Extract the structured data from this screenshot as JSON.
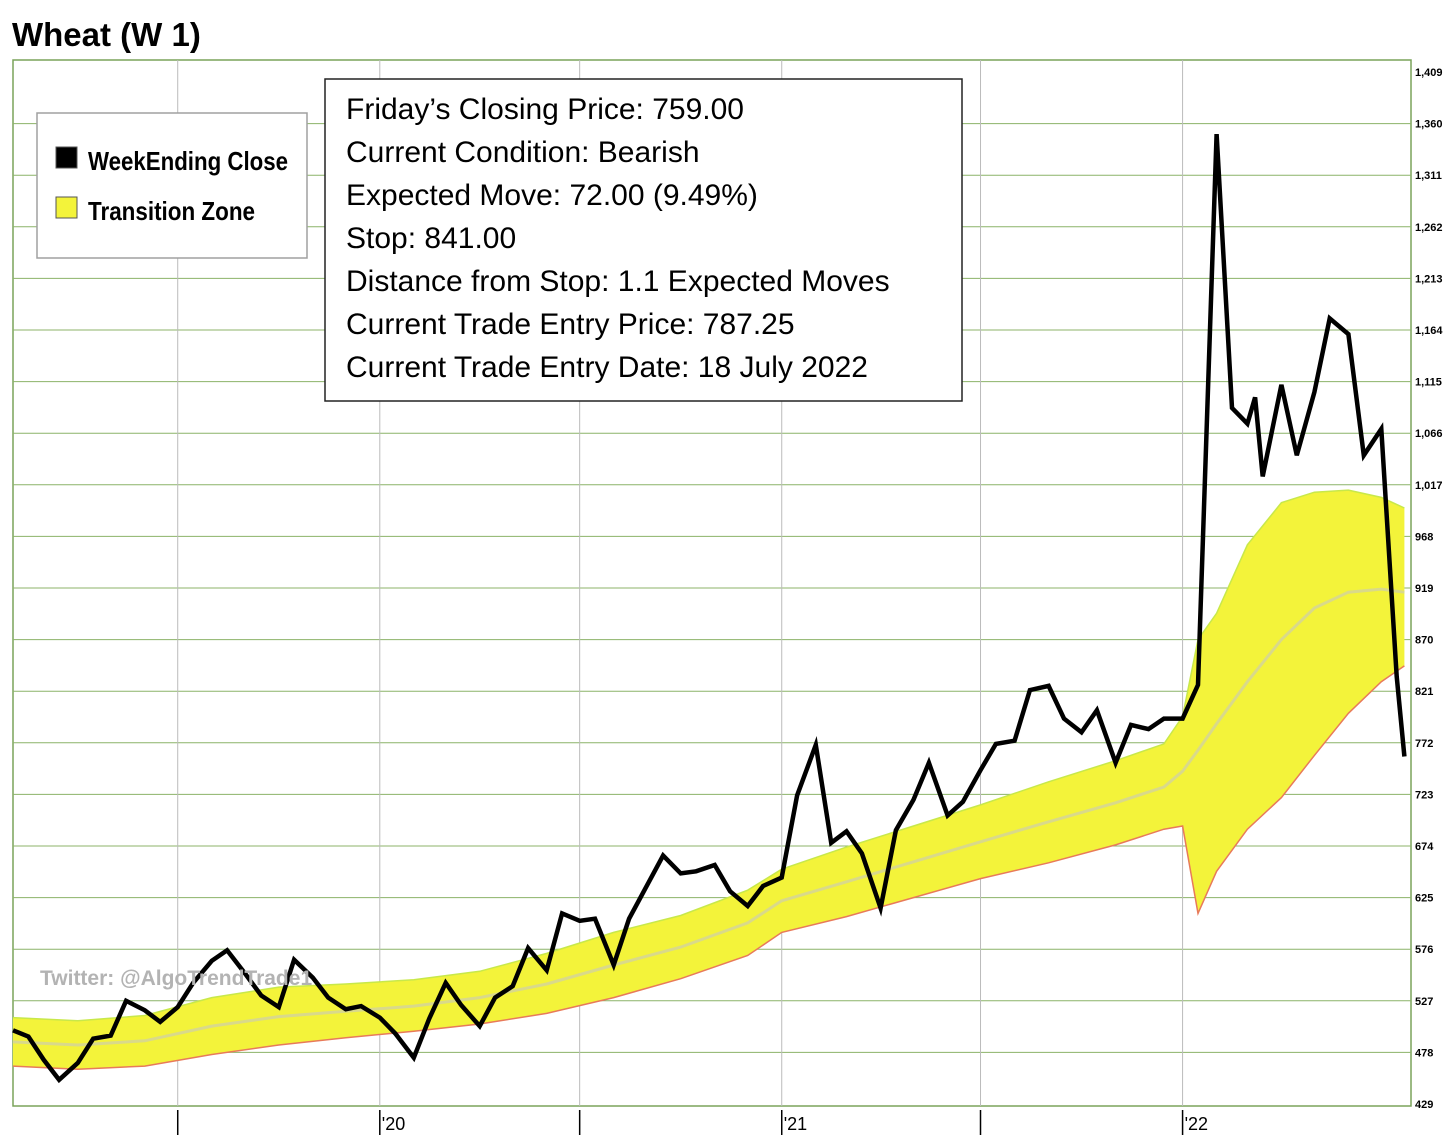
{
  "chart_data": {
    "type": "line",
    "title": "Wheat (W 1)",
    "ylim": [
      429,
      1409
    ],
    "y_ticks": [
      "1,409",
      "1,360",
      "1,311",
      "1,262",
      "1,213",
      "1,164",
      "1,115",
      "1,066",
      "1,017",
      "968",
      "919",
      "870",
      "821",
      "772",
      "723",
      "674",
      "625",
      "576",
      "527",
      "478",
      "429"
    ],
    "x_tick_labels": [
      {
        "label": "",
        "x": "2019-07"
      },
      {
        "label": "'20",
        "x": "2020-01"
      },
      {
        "label": "",
        "x": "2020-07"
      },
      {
        "label": "'21",
        "x": "2021-01"
      },
      {
        "label": "",
        "x": "2021-07"
      },
      {
        "label": "'22",
        "x": "2022-01"
      }
    ],
    "grid": true,
    "legend_position": "top-left",
    "colors": {
      "close_line": "#000000",
      "zone_fill": "#f3f33a",
      "zone_upper_edge": "#c8e84a",
      "zone_lower_edge": "#e87a5a",
      "zone_mid_line": "#d9d98a",
      "grid_horizontal": "#8cb368",
      "grid_vertical": "#bbbbbb",
      "plot_border": "#7aa35a"
    },
    "series": [
      {
        "name": "WeekEnding Close",
        "x": [
          "2019-02-01",
          "2019-02-15",
          "2019-03-01",
          "2019-03-15",
          "2019-04-01",
          "2019-04-15",
          "2019-05-01",
          "2019-05-15",
          "2019-06-01",
          "2019-06-15",
          "2019-07-01",
          "2019-07-15",
          "2019-08-01",
          "2019-08-15",
          "2019-09-01",
          "2019-09-15",
          "2019-10-01",
          "2019-10-15",
          "2019-11-01",
          "2019-11-15",
          "2019-12-01",
          "2019-12-15",
          "2020-01-01",
          "2020-01-15",
          "2020-02-01",
          "2020-02-15",
          "2020-03-01",
          "2020-03-15",
          "2020-04-01",
          "2020-04-15",
          "2020-05-01",
          "2020-05-15",
          "2020-06-01",
          "2020-06-15",
          "2020-07-01",
          "2020-07-15",
          "2020-08-01",
          "2020-08-15",
          "2020-09-01",
          "2020-09-15",
          "2020-10-01",
          "2020-10-15",
          "2020-11-01",
          "2020-11-15",
          "2020-12-01",
          "2020-12-15",
          "2021-01-01",
          "2021-01-15",
          "2021-02-01",
          "2021-02-15",
          "2021-03-01",
          "2021-03-15",
          "2021-04-01",
          "2021-04-15",
          "2021-05-01",
          "2021-05-15",
          "2021-06-01",
          "2021-06-15",
          "2021-07-01",
          "2021-07-15",
          "2021-08-01",
          "2021-08-15",
          "2021-09-01",
          "2021-09-15",
          "2021-10-01",
          "2021-10-15",
          "2021-11-01",
          "2021-11-15",
          "2021-12-01",
          "2021-12-15",
          "2022-01-01",
          "2022-01-15",
          "2022-02-01",
          "2022-02-15",
          "2022-03-01",
          "2022-03-08",
          "2022-03-15",
          "2022-04-01",
          "2022-04-15",
          "2022-05-01",
          "2022-05-15",
          "2022-06-01",
          "2022-06-15",
          "2022-07-01",
          "2022-07-15",
          "2022-07-22"
        ],
        "values": [
          499,
          493,
          471,
          452,
          468,
          491,
          494,
          527,
          518,
          507,
          521,
          544,
          565,
          575,
          552,
          532,
          521,
          566,
          549,
          530,
          519,
          522,
          511,
          496,
          473,
          510,
          544,
          523,
          503,
          530,
          541,
          577,
          556,
          610,
          603,
          605,
          561,
          605,
          638,
          665,
          648,
          650,
          656,
          631,
          617,
          636,
          644,
          722,
          770,
          677,
          688,
          667,
          615,
          689,
          718,
          753,
          703,
          716,
          746,
          771,
          774,
          822,
          826,
          795,
          782,
          803,
          753,
          789,
          785,
          795,
          795,
          827,
          1350,
          1090,
          1075,
          1100,
          1025,
          1112,
          1045,
          1105,
          1175,
          1160,
          1045,
          1070,
          835,
          759
        ]
      },
      {
        "name": "Transition Zone",
        "x": [
          "2019-02-01",
          "2019-04-01",
          "2019-06-01",
          "2019-08-01",
          "2019-10-01",
          "2019-12-01",
          "2020-02-01",
          "2020-04-01",
          "2020-06-01",
          "2020-08-01",
          "2020-10-01",
          "2020-12-01",
          "2021-01-01",
          "2021-03-01",
          "2021-05-01",
          "2021-07-01",
          "2021-09-01",
          "2021-11-01",
          "2021-12-15",
          "2022-01-01",
          "2022-01-15",
          "2022-02-01",
          "2022-03-01",
          "2022-04-01",
          "2022-05-01",
          "2022-06-01",
          "2022-07-01",
          "2022-07-22"
        ],
        "upper": [
          511,
          508,
          513,
          530,
          540,
          543,
          547,
          555,
          572,
          592,
          608,
          632,
          652,
          673,
          693,
          713,
          735,
          755,
          771,
          797,
          870,
          895,
          960,
          1000,
          1010,
          1012,
          1005,
          995
        ],
        "lower": [
          465,
          462,
          465,
          476,
          485,
          492,
          498,
          505,
          515,
          530,
          548,
          570,
          592,
          607,
          625,
          643,
          658,
          675,
          690,
          693,
          610,
          650,
          690,
          720,
          760,
          800,
          830,
          845
        ],
        "mid": [
          488,
          485,
          489,
          503,
          512,
          517,
          522,
          530,
          543,
          561,
          578,
          601,
          622,
          640,
          659,
          678,
          697,
          715,
          730,
          745,
          765,
          790,
          830,
          870,
          900,
          915,
          918,
          915
        ]
      }
    ]
  },
  "legend": {
    "items": [
      {
        "label": "WeekEnding Close",
        "color": "#000000"
      },
      {
        "label": "Transition Zone",
        "color": "#f3f33a"
      }
    ]
  },
  "info_box": {
    "lines": [
      "Friday’s Closing Price: 759.00",
      "Current Condition: Bearish",
      "Expected Move: 72.00 (9.49%)",
      "Stop: 841.00",
      "Distance from Stop: 1.1 Expected Moves",
      "Current Trade Entry Price: 787.25",
      "Current Trade Entry Date: 18 July 2022"
    ]
  },
  "watermark": "Twitter: @AlgoTrendTrade1"
}
